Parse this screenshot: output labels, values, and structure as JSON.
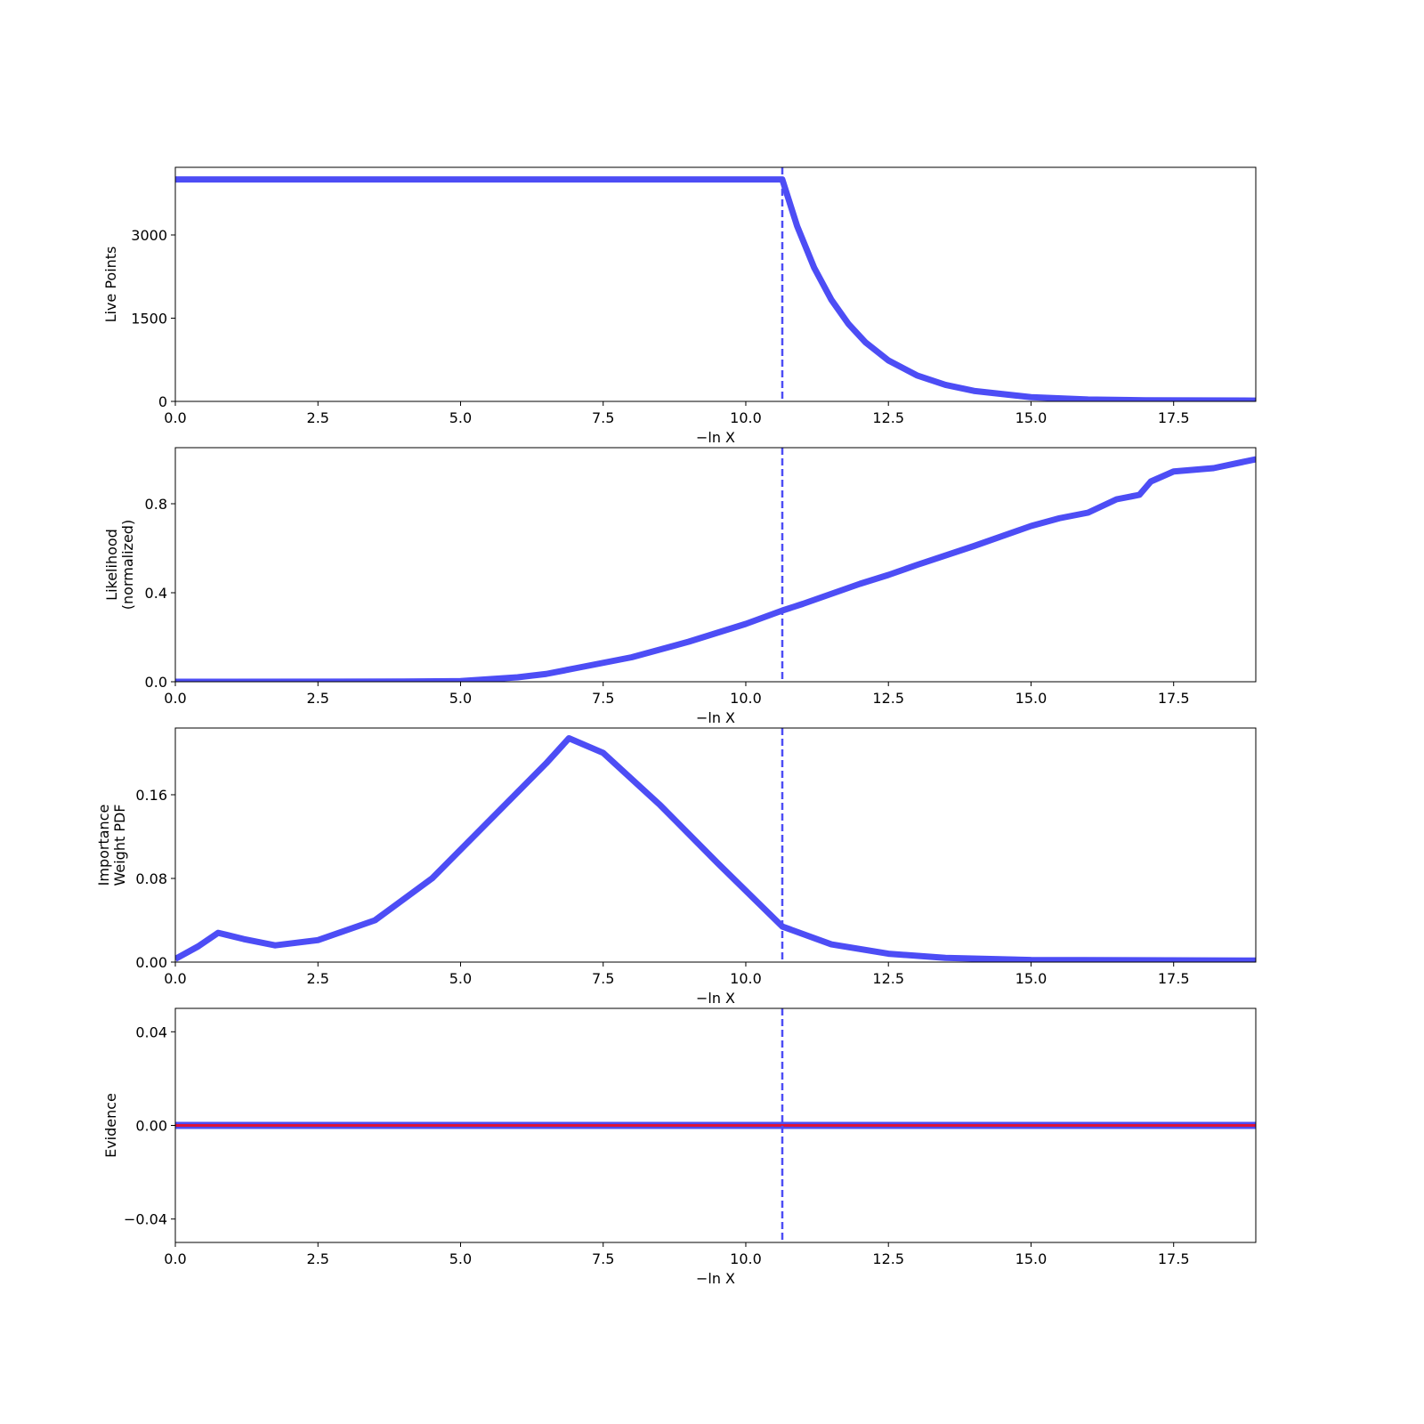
{
  "chart_data": [
    {
      "type": "line",
      "ylabel": [
        "Live Points"
      ],
      "xlabel": "−ln X",
      "x": [
        0,
        10.6,
        10.64,
        10.9,
        11.2,
        11.5,
        11.8,
        12.1,
        12.5,
        13,
        13.5,
        14,
        15,
        16,
        17,
        18.94
      ],
      "series": [
        {
          "color": "#4d4df5",
          "values": [
            4000,
            4000,
            4000,
            3159,
            2406,
            1832,
            1396,
            1062,
            738,
            469,
            298,
            189,
            76,
            35,
            20,
            15
          ]
        }
      ],
      "xlim": [
        0,
        18.94
      ],
      "ylim": [
        0,
        4219
      ],
      "xticks": [
        {
          "value": 0,
          "label": "0.0"
        },
        2.5,
        {
          "value": 5,
          "label": "5.0"
        },
        7.5,
        {
          "value": 10,
          "label": "10.0"
        },
        12.5,
        {
          "value": 15,
          "label": "15.0"
        },
        17.5
      ],
      "yticks": [
        0,
        1500,
        3000
      ],
      "vline": 10.64,
      "vline_color": "#4d4df5"
    },
    {
      "type": "line",
      "ylabel": [
        "Likelihood",
        "(normalized)"
      ],
      "xlabel": "−ln X",
      "x": [
        0,
        4,
        5,
        6,
        6.5,
        7,
        7.5,
        8,
        9,
        10,
        10.64,
        11,
        12,
        12.5,
        13,
        14,
        15,
        15.5,
        16,
        16.5,
        16.9,
        17.1,
        17.5,
        18.2,
        18.94
      ],
      "series": [
        {
          "color": "#4d4df5",
          "values": [
            0,
            0.001,
            0.003,
            0.02,
            0.035,
            0.06,
            0.085,
            0.11,
            0.18,
            0.26,
            0.32,
            0.35,
            0.44,
            0.48,
            0.525,
            0.61,
            0.7,
            0.735,
            0.76,
            0.82,
            0.84,
            0.9,
            0.945,
            0.96,
            1.0
          ]
        }
      ],
      "xlim": [
        0,
        18.94
      ],
      "ylim": [
        0,
        1.052
      ],
      "xticks": [
        {
          "value": 0,
          "label": "0.0"
        },
        2.5,
        {
          "value": 5,
          "label": "5.0"
        },
        7.5,
        {
          "value": 10,
          "label": "10.0"
        },
        12.5,
        {
          "value": 15,
          "label": "15.0"
        },
        17.5
      ],
      "yticks": [
        {
          "value": 0,
          "label": "0.0"
        },
        0.4,
        0.8
      ],
      "vline": 10.64,
      "vline_color": "#4d4df5"
    },
    {
      "type": "line",
      "ylabel": [
        "Importance",
        "Weight PDF"
      ],
      "xlabel": "−ln X",
      "x": [
        0,
        0.4,
        0.75,
        1.2,
        1.75,
        2.5,
        3.5,
        4.5,
        5.5,
        6.5,
        6.9,
        7.5,
        8.5,
        9.5,
        10.64,
        11.5,
        12.5,
        13.5,
        15,
        18.94
      ],
      "series": [
        {
          "color": "#4d4df5",
          "values": [
            0.003,
            0.015,
            0.028,
            0.022,
            0.016,
            0.021,
            0.04,
            0.08,
            0.135,
            0.19,
            0.214,
            0.2,
            0.15,
            0.095,
            0.034,
            0.017,
            0.008,
            0.004,
            0.002,
            0.0015
          ]
        }
      ],
      "xlim": [
        0,
        18.94
      ],
      "ylim": [
        0,
        0.2238
      ],
      "xticks": [
        {
          "value": 0,
          "label": "0.0"
        },
        2.5,
        {
          "value": 5,
          "label": "5.0"
        },
        7.5,
        {
          "value": 10,
          "label": "10.0"
        },
        12.5,
        {
          "value": 15,
          "label": "15.0"
        },
        17.5
      ],
      "yticks": [
        {
          "value": 0,
          "label": "0.00"
        },
        0.08,
        0.16
      ],
      "vline": 10.64,
      "vline_color": "#4d4df5"
    },
    {
      "type": "line",
      "ylabel": [
        "Evidence"
      ],
      "xlabel": "−ln X",
      "x": [
        0,
        18.94
      ],
      "series": [
        {
          "color": "#dc143c",
          "band_color": "#4d4df5",
          "values": [
            0,
            0
          ]
        }
      ],
      "xlim": [
        0,
        18.94
      ],
      "ylim": [
        -0.05,
        0.05
      ],
      "xticks": [
        {
          "value": 0,
          "label": "0.0"
        },
        2.5,
        {
          "value": 5,
          "label": "5.0"
        },
        7.5,
        {
          "value": 10,
          "label": "10.0"
        },
        12.5,
        {
          "value": 15,
          "label": "15.0"
        },
        17.5
      ],
      "yticks": [
        {
          "value": -0.04,
          "label": "−0.04"
        },
        {
          "value": 0,
          "label": "0.00"
        },
        0.04
      ],
      "vline": 10.64,
      "vline_color": "#4d4df5"
    }
  ]
}
